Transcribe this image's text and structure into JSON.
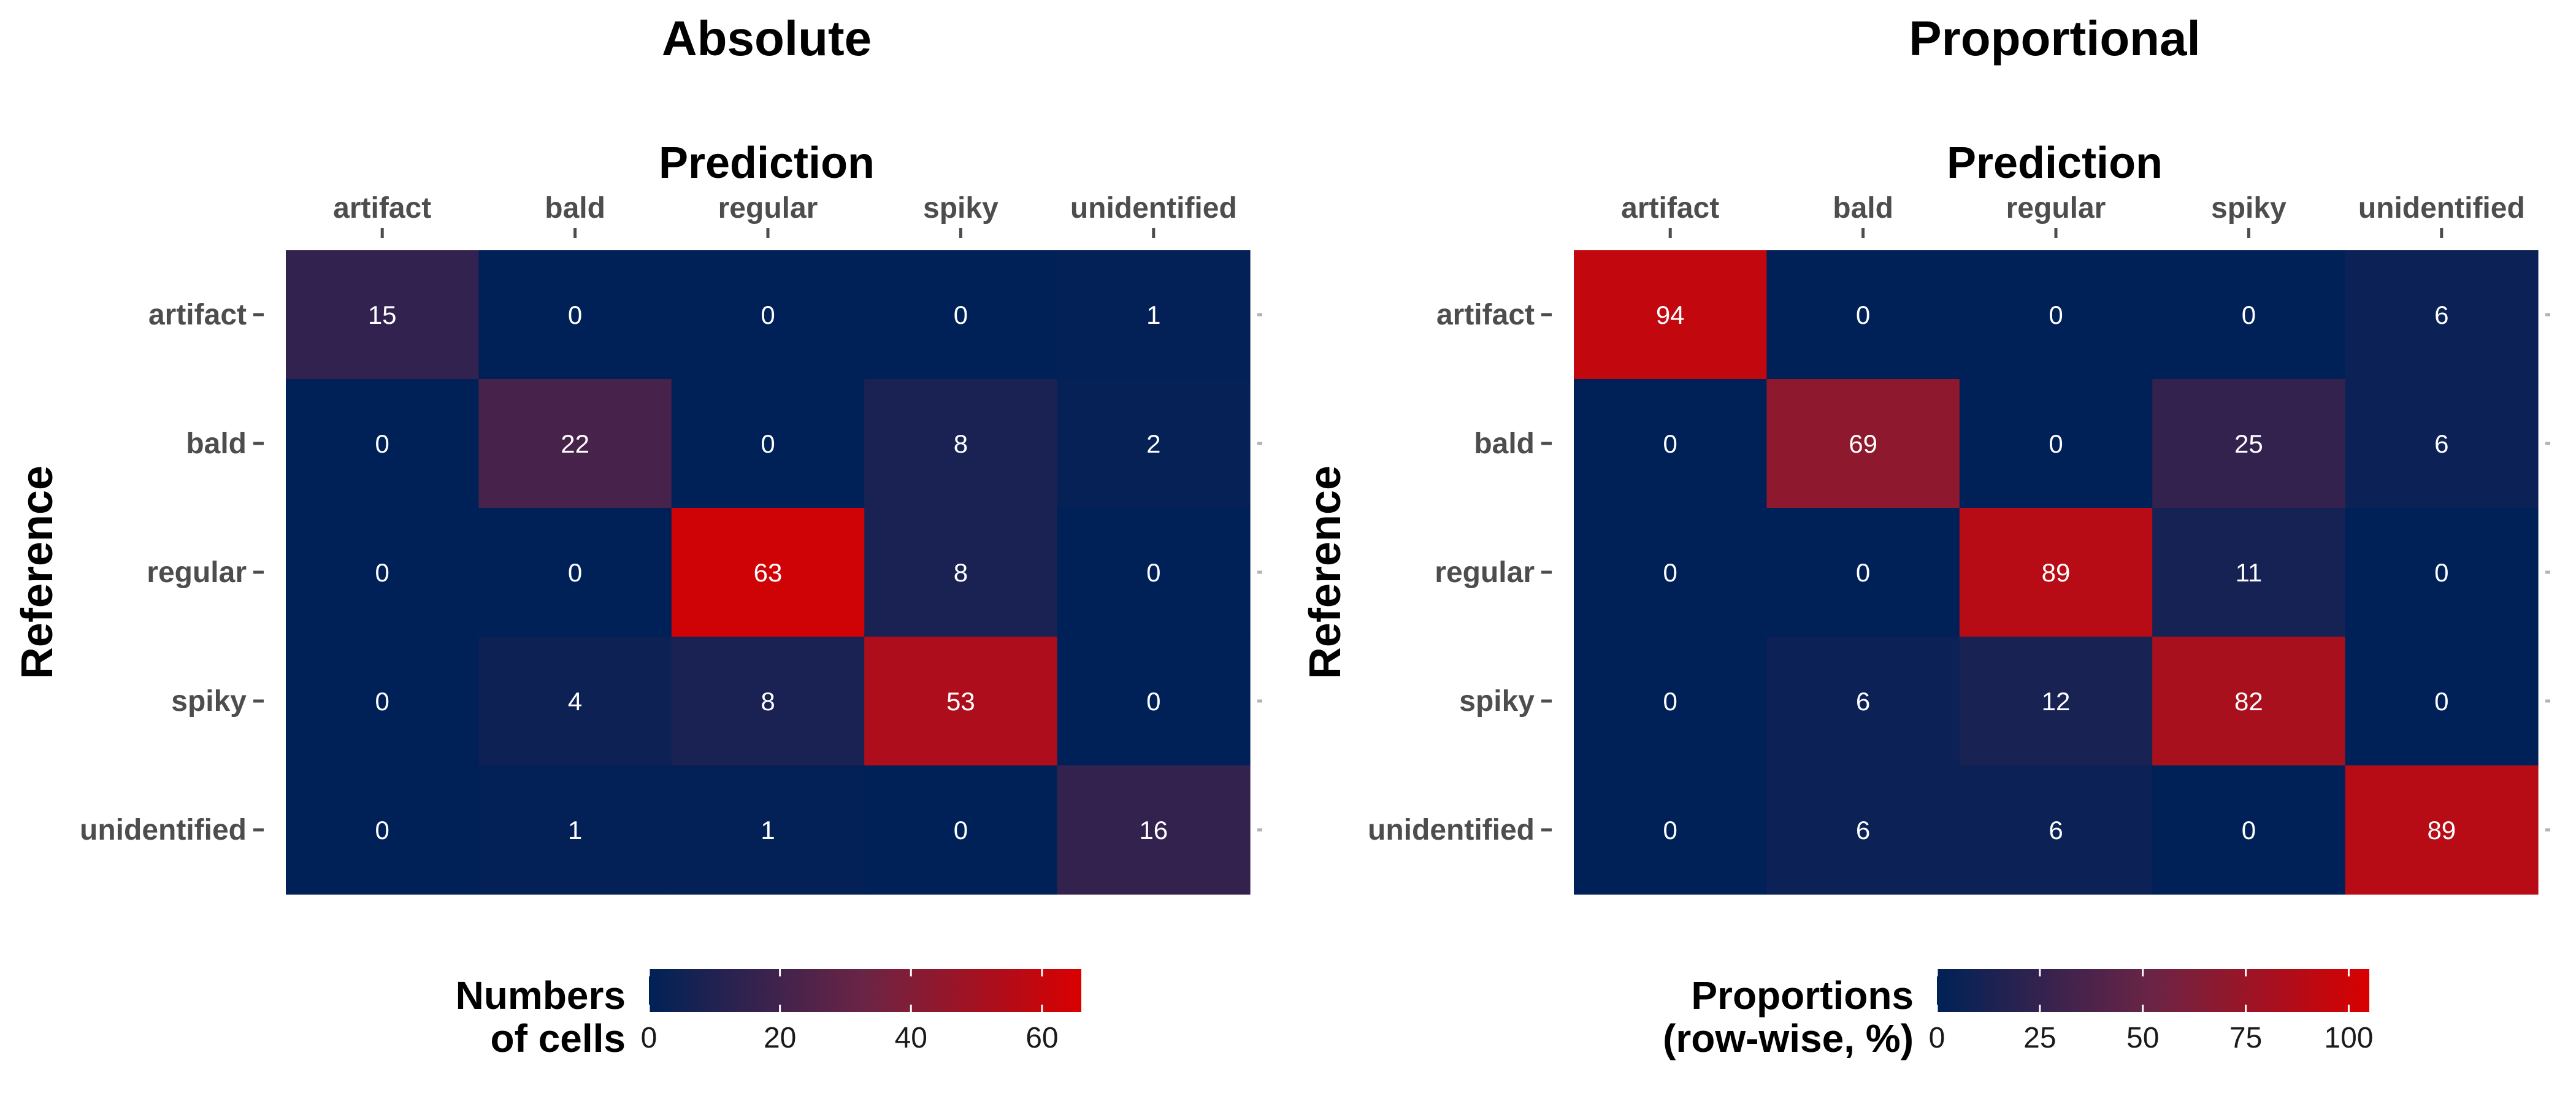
{
  "colors": {
    "low": "#002157",
    "mid": "#6b2445",
    "high": "#d90000",
    "cell_text": "#ffffff",
    "tick": "#4d4d4d"
  },
  "chart_data": [
    {
      "type": "heatmap",
      "title": "Absolute",
      "xlabel": "Prediction",
      "ylabel": "Reference",
      "x_categories": [
        "artifact",
        "bald",
        "regular",
        "spiky",
        "unidentified"
      ],
      "y_categories": [
        "artifact",
        "bald",
        "regular",
        "spiky",
        "unidentified"
      ],
      "values": [
        [
          15,
          0,
          0,
          0,
          1
        ],
        [
          0,
          22,
          0,
          8,
          2
        ],
        [
          0,
          0,
          63,
          8,
          0
        ],
        [
          0,
          4,
          8,
          53,
          0
        ],
        [
          0,
          1,
          1,
          0,
          16
        ]
      ],
      "color_range": [
        0,
        66
      ],
      "legend": {
        "title_lines": [
          "Numbers",
          "of cells"
        ],
        "ticks": [
          0,
          20,
          40,
          60
        ],
        "position": "bottom"
      }
    },
    {
      "type": "heatmap",
      "title": "Proportional",
      "xlabel": "Prediction",
      "ylabel": "Reference",
      "x_categories": [
        "artifact",
        "bald",
        "regular",
        "spiky",
        "unidentified"
      ],
      "y_categories": [
        "artifact",
        "bald",
        "regular",
        "spiky",
        "unidentified"
      ],
      "values": [
        [
          94,
          0,
          0,
          0,
          6
        ],
        [
          0,
          69,
          0,
          25,
          6
        ],
        [
          0,
          0,
          89,
          11,
          0
        ],
        [
          0,
          6,
          12,
          82,
          0
        ],
        [
          0,
          6,
          6,
          0,
          89
        ]
      ],
      "color_range": [
        0,
        105
      ],
      "legend": {
        "title_lines": [
          "Proportions",
          "(row-wise, %)"
        ],
        "ticks": [
          0,
          25,
          50,
          75,
          100
        ],
        "position": "bottom"
      }
    }
  ]
}
